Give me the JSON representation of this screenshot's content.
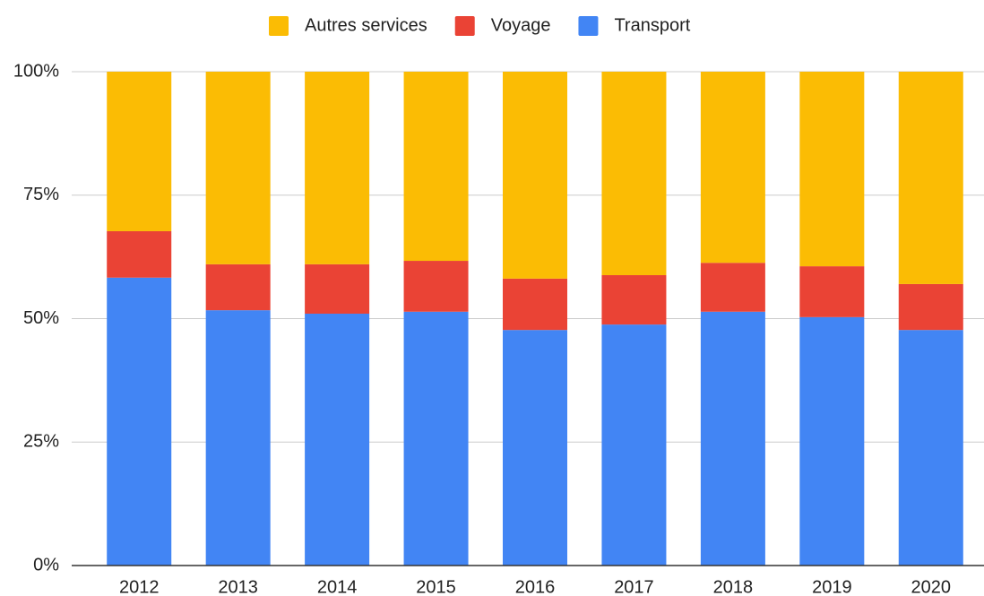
{
  "chart_data": {
    "type": "bar",
    "stacked": true,
    "categories": [
      "2012",
      "2013",
      "2014",
      "2015",
      "2016",
      "2017",
      "2018",
      "2019",
      "2020"
    ],
    "series": [
      {
        "name": "Autres services",
        "color": "#fbbc04",
        "values": [
          32.3,
          39.0,
          39.0,
          38.3,
          41.9,
          41.2,
          38.7,
          39.4,
          43.0
        ]
      },
      {
        "name": "Voyage",
        "color": "#ea4335",
        "values": [
          9.4,
          9.3,
          10.0,
          10.3,
          10.4,
          10.0,
          9.9,
          10.3,
          9.3
        ]
      },
      {
        "name": "Transport",
        "color": "#4285f4",
        "values": [
          58.3,
          51.7,
          51.0,
          51.4,
          47.7,
          48.8,
          51.4,
          50.3,
          47.7
        ]
      }
    ],
    "ylim": [
      0,
      100
    ],
    "yticks": [
      {
        "value": 0,
        "label": "0%"
      },
      {
        "value": 25,
        "label": "25%"
      },
      {
        "value": 50,
        "label": "50%"
      },
      {
        "value": 75,
        "label": "75%"
      },
      {
        "value": 100,
        "label": "100%"
      }
    ],
    "grid": true,
    "legend": "top"
  }
}
